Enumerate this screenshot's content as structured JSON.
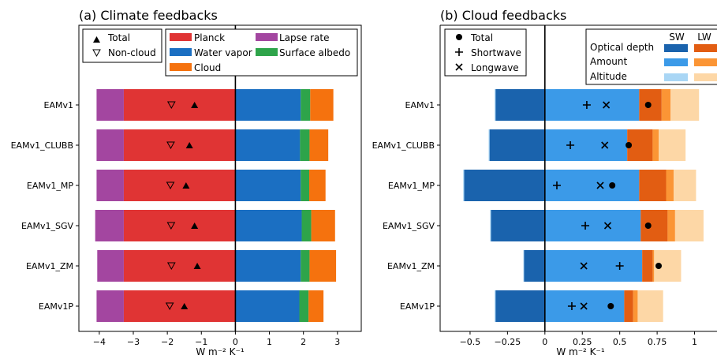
{
  "colors": {
    "planck": "#e03434",
    "water_vapor": "#1b6fc2",
    "cloud": "#f5720e",
    "lapse_rate": "#a346a0",
    "surface_albedo": "#2ea44a",
    "sw_optical_depth": "#1a63ad",
    "sw_amount": "#3b9ae8",
    "sw_altitude": "#a9d6f5",
    "lw_optical_depth": "#e25d12",
    "lw_amount": "#fb9535",
    "lw_altitude": "#fdd7a6"
  },
  "chart_data": [
    {
      "type": "bar",
      "orientation": "horizontal",
      "stacked": true,
      "title": "(a) Climate feedbacks",
      "xlabel": "W m⁻² K⁻¹",
      "xlim": [
        -4.6,
        3.7
      ],
      "xticks": [
        -4,
        -3,
        -2,
        -1,
        0,
        1,
        2,
        3
      ],
      "xtick_labels": [
        "−4",
        "−3",
        "−2",
        "−1",
        "0",
        "1",
        "2",
        "3"
      ],
      "categories": [
        "EAMv1",
        "EAMv1_CLUBB",
        "EAMv1_MP",
        "EAMv1_SGV",
        "EAMv1_ZM",
        "EAMv1P"
      ],
      "legend": {
        "markers": [
          {
            "label": "Total",
            "marker": "filled-triangle"
          },
          {
            "label": "Non-cloud",
            "marker": "open-triangle-down"
          }
        ],
        "bars": [
          {
            "label": "Planck",
            "color_key": "planck"
          },
          {
            "label": "Lapse rate",
            "color_key": "lapse_rate"
          },
          {
            "label": "Water vapor",
            "color_key": "water_vapor"
          },
          {
            "label": "Surface albedo",
            "color_key": "surface_albedo"
          },
          {
            "label": "Cloud",
            "color_key": "cloud"
          }
        ]
      },
      "series": [
        {
          "name": "Planck",
          "color_key": "planck",
          "values": [
            -3.28,
            -3.28,
            -3.28,
            -3.28,
            -3.28,
            -3.28
          ]
        },
        {
          "name": "Lapse rate",
          "color_key": "lapse_rate",
          "values": [
            -0.8,
            -0.8,
            -0.8,
            -0.84,
            -0.78,
            -0.8
          ]
        },
        {
          "name": "Water vapor",
          "color_key": "water_vapor",
          "values": [
            1.92,
            1.9,
            1.92,
            1.95,
            1.92,
            1.88
          ]
        },
        {
          "name": "Surface albedo",
          "color_key": "surface_albedo",
          "values": [
            0.28,
            0.28,
            0.25,
            0.28,
            0.26,
            0.27
          ]
        },
        {
          "name": "Cloud",
          "color_key": "cloud",
          "values": [
            0.68,
            0.55,
            0.48,
            0.7,
            0.78,
            0.44
          ]
        }
      ],
      "markers": [
        {
          "name": "Total",
          "values": [
            -1.2,
            -1.35,
            -1.45,
            -1.2,
            -1.12,
            -1.5
          ]
        },
        {
          "name": "Non-cloud",
          "values": [
            -1.88,
            -1.9,
            -1.91,
            -1.89,
            -1.88,
            -1.93
          ]
        }
      ]
    },
    {
      "type": "bar",
      "orientation": "horizontal",
      "stacked": true,
      "title": "(b) Cloud feedbacks",
      "xlabel": "W m⁻² K⁻¹",
      "xlim": [
        -0.7,
        1.15
      ],
      "xticks": [
        -0.5,
        -0.25,
        0,
        0.25,
        0.5,
        0.75,
        1
      ],
      "xtick_labels": [
        "−0.5",
        "−0.25",
        "0",
        "0.25",
        "0.5",
        "0.75",
        "1"
      ],
      "categories": [
        "EAMv1",
        "EAMv1_CLUBB",
        "EAMv1_MP",
        "EAMv1_SGV",
        "EAMv1_ZM",
        "EAMv1P"
      ],
      "legend": {
        "markers": [
          {
            "label": "Total",
            "marker": "filled-circle"
          },
          {
            "label": "Shortwave",
            "marker": "plus"
          },
          {
            "label": "Longwave",
            "marker": "x"
          }
        ],
        "grid_columns": [
          "SW",
          "LW"
        ],
        "grid_rows": [
          {
            "label": "Optical depth",
            "sw_key": "sw_optical_depth",
            "lw_key": "lw_optical_depth"
          },
          {
            "label": "Amount",
            "sw_key": "sw_amount",
            "lw_key": "lw_amount"
          },
          {
            "label": "Altitude",
            "sw_key": "sw_altitude",
            "lw_key": "lw_altitude"
          }
        ]
      },
      "series": [
        {
          "name": "SW Optical depth",
          "color_key": "sw_optical_depth",
          "values": [
            -0.33,
            -0.37,
            -0.54,
            -0.36,
            -0.14,
            -0.33
          ]
        },
        {
          "name": "SW Altitude",
          "color_key": "sw_altitude",
          "values": [
            -0.006,
            -0.006,
            -0.006,
            -0.006,
            -0.004,
            -0.006
          ]
        },
        {
          "name": "SW Amount",
          "color_key": "sw_amount",
          "values": [
            0.63,
            0.55,
            0.63,
            0.64,
            0.65,
            0.53
          ]
        },
        {
          "name": "LW Optical depth",
          "color_key": "lw_optical_depth",
          "values": [
            0.15,
            0.17,
            0.18,
            0.18,
            0.07,
            0.06
          ]
        },
        {
          "name": "LW Amount",
          "color_key": "lw_amount",
          "values": [
            0.06,
            0.04,
            0.05,
            0.05,
            0.01,
            0.03
          ]
        },
        {
          "name": "LW Altitude",
          "color_key": "lw_altitude",
          "values": [
            0.19,
            0.18,
            0.15,
            0.19,
            0.18,
            0.17
          ]
        }
      ],
      "markers": [
        {
          "name": "Total",
          "values": [
            0.69,
            0.56,
            0.45,
            0.69,
            0.76,
            0.44
          ]
        },
        {
          "name": "Shortwave",
          "values": [
            0.28,
            0.17,
            0.08,
            0.27,
            0.5,
            0.18
          ]
        },
        {
          "name": "Longwave",
          "values": [
            0.41,
            0.4,
            0.37,
            0.42,
            0.26,
            0.26
          ]
        }
      ]
    }
  ]
}
